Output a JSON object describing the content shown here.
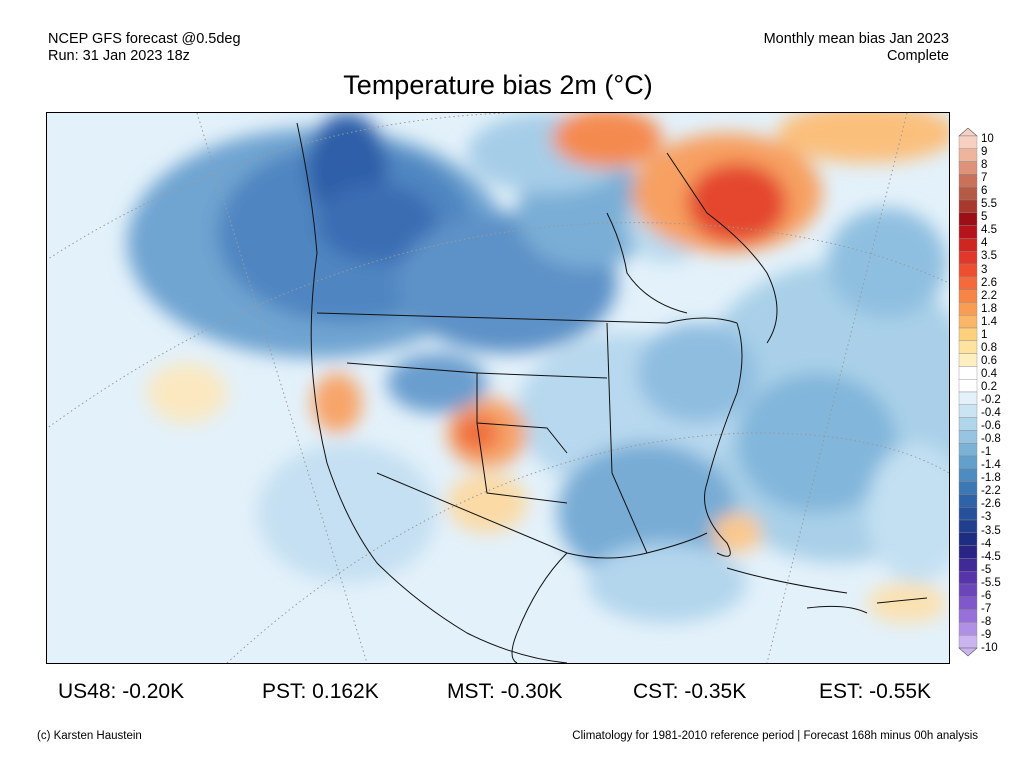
{
  "header": {
    "model_line": "NCEP GFS forecast @0.5deg",
    "run_line": "Run: 31 Jan 2023 18z",
    "period_line": "Monthly mean bias Jan 2023",
    "status_line": "Complete"
  },
  "title": "Temperature bias 2m (°C)",
  "colorbar": {
    "labels": [
      "10",
      "9",
      "8",
      "7",
      "6",
      "5.5",
      "5",
      "4.5",
      "4",
      "3.5",
      "3",
      "2.6",
      "2.2",
      "1.8",
      "1.4",
      "1",
      "0.8",
      "0.6",
      "0.4",
      "0.2",
      "-0.2",
      "-0.4",
      "-0.6",
      "-0.8",
      "-1",
      "-1.4",
      "-1.8",
      "-2.2",
      "-2.6",
      "-3",
      "-3.5",
      "-4",
      "-4.5",
      "-5",
      "-5.5",
      "-6",
      "-7",
      "-8",
      "-9",
      "-10"
    ],
    "colors": [
      "#f7d0c2",
      "#eeb59c",
      "#dd937a",
      "#c9715b",
      "#b65a48",
      "#a9392f",
      "#9c0f17",
      "#b5141c",
      "#cf2622",
      "#e2372b",
      "#ee4f30",
      "#f46a3a",
      "#f78545",
      "#f99d55",
      "#fbb767",
      "#fdd07e",
      "#fde2a0",
      "#fdefbf",
      "#ffffff",
      "#ffffff",
      "#e4f1fa",
      "#cae4f3",
      "#b1d5ea",
      "#97c5e1",
      "#7bb2d6",
      "#639fcb",
      "#4e8bc0",
      "#3d77b4",
      "#2f63a8",
      "#27509b",
      "#213f8e",
      "#1e2c81",
      "#2a2485",
      "#3f2a97",
      "#5535a9",
      "#6b46bb",
      "#8158cb",
      "#9870d9",
      "#b090e5",
      "#cbb4f0"
    ]
  },
  "stats": [
    {
      "label": "US48: -0.20K"
    },
    {
      "label": "PST: 0.162K"
    },
    {
      "label": "MST: -0.30K"
    },
    {
      "label": "CST: -0.35K"
    },
    {
      "label": "EST: -0.55K"
    }
  ],
  "footer": {
    "credit": "(c) Karsten Haustein",
    "note": "Climatology for 1981-2010 reference period | Forecast 168h minus 00h analysis"
  }
}
